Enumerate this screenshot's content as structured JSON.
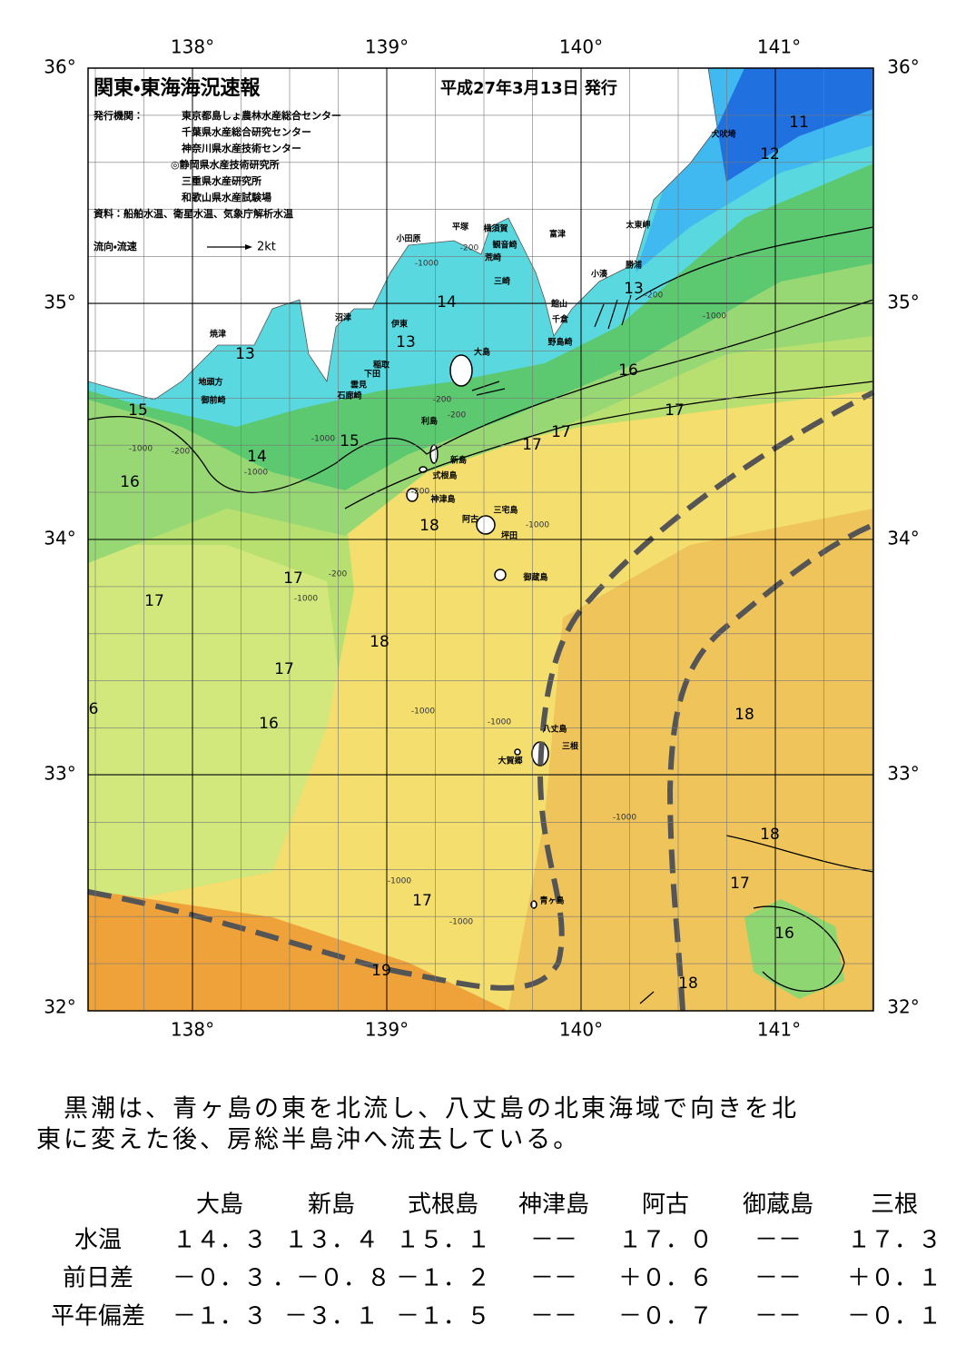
{
  "header": {
    "title": "関東・東海海況速報",
    "date": "平成27年3月13日 発行",
    "publisher_label": "発行機関：",
    "publishers": [
      "東京都島しょ農林水産総合センター",
      "千葉県水産総合研究センター",
      "神奈川県水産技術センター",
      "◎静岡県水産技術研究所",
      "三重県水産研究所",
      "和歌山県水産試験場"
    ],
    "source": "資料：船舶水温、衛星水温、気象庁解析水温",
    "legend": "流向・流速",
    "legend_scale": "2kt"
  },
  "axes": {
    "lon_ticks": [
      {
        "value": 138,
        "label": "138°"
      },
      {
        "value": 139,
        "label": "139°"
      },
      {
        "value": 140,
        "label": "140°"
      },
      {
        "value": 141,
        "label": "141°"
      }
    ],
    "lat_ticks": [
      {
        "value": 36,
        "label": "36°"
      },
      {
        "value": 35,
        "label": "35°"
      },
      {
        "value": 34,
        "label": "34°"
      },
      {
        "value": 33,
        "label": "33°"
      },
      {
        "value": 32,
        "label": "32°"
      }
    ]
  },
  "isotherm_labels": [
    "11",
    "12",
    "13",
    "14",
    "13",
    "13",
    "16",
    "17",
    "17",
    "17",
    "15",
    "15",
    "14",
    "16",
    "18",
    "17",
    "17",
    "18",
    "17",
    "6",
    "16",
    "18",
    "18",
    "17",
    "17",
    "16",
    "19",
    "18"
  ],
  "depth_labels": [
    "-200",
    "-1000",
    "-200",
    "-200",
    "-1000",
    "-200",
    "-1000",
    "-1000",
    "-200",
    "-200",
    "-1000",
    "-1000",
    "-200",
    "-1000",
    "-1000",
    "-1000",
    "-1000",
    "-1000",
    "-1000"
  ],
  "place_names": [
    "犬吠埼",
    "太東岬",
    "勝浦",
    "小湊",
    "富津",
    "横須賀",
    "平塚",
    "観音崎",
    "荒崎",
    "三崎",
    "小田原",
    "館山",
    "千倉",
    "野島崎",
    "沼津",
    "伊東",
    "焼津",
    "稲取",
    "下田",
    "雲見",
    "石廊崎",
    "地頭方",
    "御前崎",
    "大島",
    "利島",
    "新島",
    "式根島",
    "神津島",
    "三宅島",
    "阿古",
    "坪田",
    "御蔵島",
    "八丈島",
    "三根",
    "大賀郷",
    "青ヶ島"
  ],
  "summary": [
    "　黒潮は、青ヶ島の東を北流し、八丈島の北東海域で向きを北",
    "東に変えた後、房総半島沖へ流去している。"
  ],
  "table": {
    "columns": [
      "大島",
      "新島",
      "式根島",
      "神津島",
      "阿古",
      "御蔵島",
      "三根"
    ],
    "rows": [
      [
        "水温",
        "１４．３",
        "１３．４",
        "１５．１",
        "－－",
        "１７．０",
        "－－",
        "１７．３"
      ],
      [
        "前日差",
        "－０．３",
        "．－０．８",
        "－１．２",
        "－－",
        "＋０．６",
        "－－",
        "＋０．１"
      ],
      [
        "平年偏差",
        "－１．３",
        "－３．１",
        "－１．５",
        "－－",
        "－０．７",
        "－－",
        "－０．１"
      ]
    ]
  }
}
